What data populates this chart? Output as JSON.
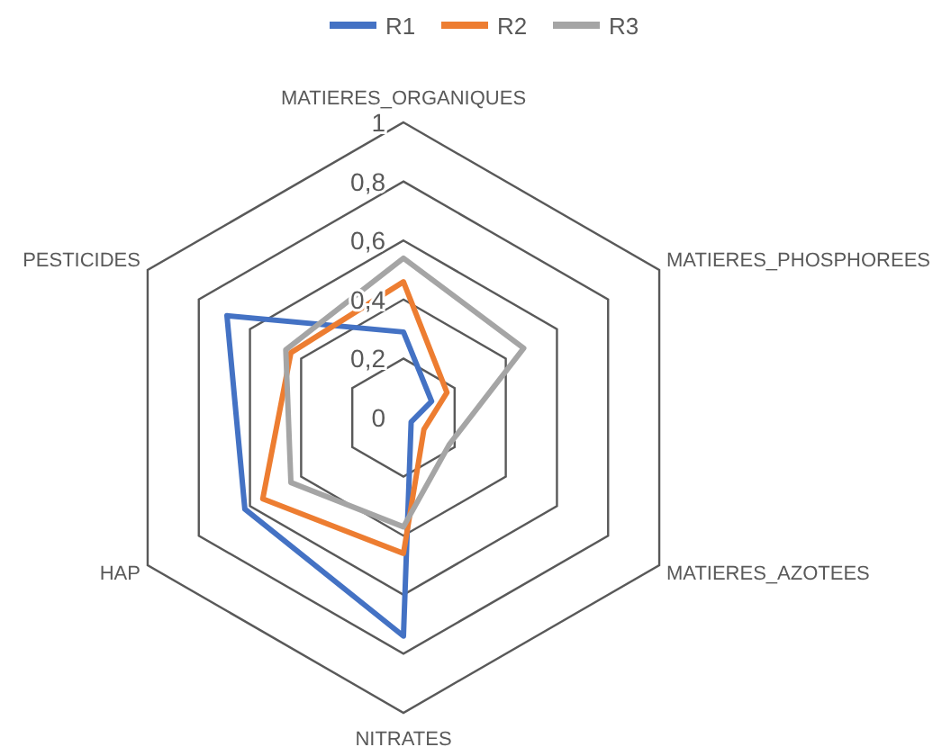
{
  "chart_data": {
    "type": "radar",
    "categories": [
      "MATIERES_ORGANIQUES",
      "MATIERES_PHOSPHOREES",
      "MATIERES_AZOTEES",
      "NITRATES",
      "HAP",
      "PESTICIDES"
    ],
    "series": [
      {
        "name": "R1",
        "color": "#4472c4",
        "values": [
          0.29,
          0.11,
          0.03,
          0.74,
          0.62,
          0.69
        ]
      },
      {
        "name": "R2",
        "color": "#ed7d31",
        "values": [
          0.46,
          0.17,
          0.08,
          0.46,
          0.55,
          0.44
        ]
      },
      {
        "name": "R3",
        "color": "#a5a5a5",
        "values": [
          0.54,
          0.47,
          0.18,
          0.37,
          0.44,
          0.46
        ]
      }
    ],
    "ylim": [
      0,
      1
    ],
    "yticks": [
      {
        "value": 0,
        "label": "0"
      },
      {
        "value": 0.2,
        "label": "0,2"
      },
      {
        "value": 0.4,
        "label": "0,4"
      },
      {
        "value": 0.6,
        "label": "0,6"
      },
      {
        "value": 0.8,
        "label": "0,8"
      },
      {
        "value": 1,
        "label": "1"
      }
    ],
    "grid": true,
    "legend": "top",
    "marker": "none"
  }
}
